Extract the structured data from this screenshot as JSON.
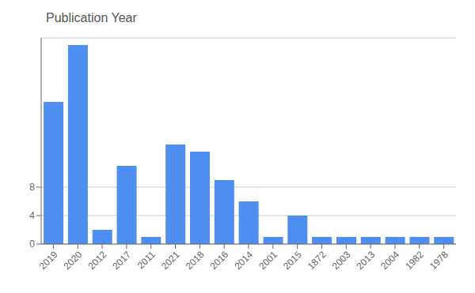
{
  "chart_data": {
    "type": "bar",
    "title": "Publication Year",
    "categories": [
      "2019",
      "2020",
      "2012",
      "2017",
      "2011",
      "2021",
      "2018",
      "2016",
      "2014",
      "2001",
      "2015",
      "1872",
      "2003",
      "2013",
      "2004",
      "1982",
      "1978"
    ],
    "values": [
      20,
      28,
      2,
      11,
      1,
      14,
      13,
      9,
      6,
      1,
      4,
      1,
      1,
      1,
      1,
      1,
      1
    ],
    "color": "#4d8ef0",
    "ylim": [
      0,
      29
    ],
    "yticks": [
      0,
      4,
      8
    ],
    "grid": true
  }
}
